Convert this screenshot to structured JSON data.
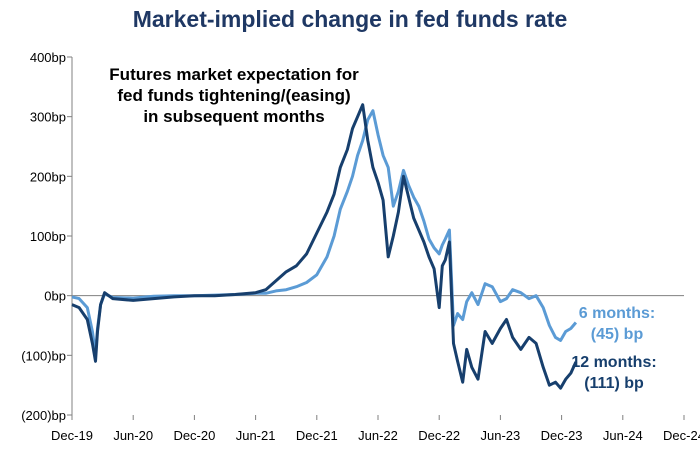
{
  "chart_data": {
    "type": "line",
    "title": "Market-implied change in fed funds rate",
    "xlabel": "",
    "ylabel": "",
    "ylim": [
      -200,
      400
    ],
    "y_ticks": [
      {
        "value": 400,
        "label": "400bp"
      },
      {
        "value": 300,
        "label": "300bp"
      },
      {
        "value": 200,
        "label": "200bp"
      },
      {
        "value": 100,
        "label": "100bp"
      },
      {
        "value": 0,
        "label": "0bp"
      },
      {
        "value": -100,
        "label": "(100)bp"
      },
      {
        "value": -200,
        "label": "(200)bp"
      }
    ],
    "x_range_months": [
      0,
      60
    ],
    "x_ticks": [
      {
        "value": 0,
        "label": "Dec-19"
      },
      {
        "value": 6,
        "label": "Jun-20"
      },
      {
        "value": 12,
        "label": "Dec-20"
      },
      {
        "value": 18,
        "label": "Jun-21"
      },
      {
        "value": 24,
        "label": "Dec-21"
      },
      {
        "value": 30,
        "label": "Jun-22"
      },
      {
        "value": 36,
        "label": "Dec-22"
      },
      {
        "value": 42,
        "label": "Jun-23"
      },
      {
        "value": 48,
        "label": "Dec-23"
      },
      {
        "value": 54,
        "label": "Jun-24"
      },
      {
        "value": 60,
        "label": "Dec-24"
      }
    ],
    "annotation": [
      "Futures market expectation for",
      "fed funds tightening/(easing)",
      "in subsequent months"
    ],
    "series": [
      {
        "name": "6 months",
        "color": "#5b9bd5",
        "end_label": [
          "6 months:",
          "(45) bp"
        ],
        "x": [
          0,
          0.7,
          1.5,
          2.0,
          2.3,
          2.5,
          2.8,
          3.2,
          4,
          6,
          8,
          10,
          12,
          14,
          16,
          18,
          19,
          20,
          21,
          22,
          23,
          24,
          25,
          25.7,
          26.3,
          27,
          27.5,
          28,
          28.5,
          29,
          29.5,
          30,
          30.5,
          31,
          31.5,
          32,
          32.5,
          33,
          33.5,
          34,
          34.5,
          35,
          35.5,
          36,
          36.3,
          36.6,
          37,
          37.4,
          37.8,
          38.3,
          38.7,
          39.2,
          39.8,
          40.5,
          41.2,
          42,
          42.6,
          43.2,
          44,
          44.8,
          45.5,
          46.2,
          46.8,
          47.4,
          47.9,
          48.4,
          48.9,
          49.4
        ],
        "values": [
          -2,
          -5,
          -20,
          -60,
          -97,
          -55,
          -15,
          3,
          -3,
          -4,
          -1,
          0,
          0,
          1,
          2,
          4,
          4,
          8,
          10,
          15,
          22,
          35,
          65,
          100,
          145,
          175,
          200,
          235,
          260,
          295,
          310,
          270,
          235,
          215,
          150,
          175,
          210,
          185,
          165,
          150,
          125,
          95,
          80,
          70,
          85,
          95,
          110,
          -50,
          -30,
          -40,
          -10,
          5,
          -15,
          20,
          15,
          -10,
          -5,
          10,
          5,
          -5,
          0,
          -20,
          -50,
          -70,
          -75,
          -60,
          -55,
          -45
        ]
      },
      {
        "name": "12 months",
        "color": "#173f6d",
        "end_label": [
          "12 months:",
          "(111) bp"
        ],
        "x": [
          0,
          0.7,
          1.5,
          2.0,
          2.3,
          2.5,
          2.8,
          3.2,
          4,
          6,
          8,
          10,
          12,
          14,
          16,
          18,
          19,
          20,
          21,
          22,
          23,
          24,
          25,
          25.7,
          26.3,
          27,
          27.5,
          28,
          28.5,
          29,
          29.5,
          30,
          30.5,
          31,
          31.5,
          32,
          32.5,
          33,
          33.5,
          34,
          34.5,
          35,
          35.5,
          36,
          36.3,
          36.6,
          37,
          37.4,
          37.8,
          38.3,
          38.7,
          39.2,
          39.8,
          40.5,
          41.2,
          42,
          42.6,
          43.2,
          44,
          44.8,
          45.5,
          46.2,
          46.8,
          47.4,
          47.9,
          48.4,
          48.9,
          49.4
        ],
        "values": [
          -15,
          -20,
          -40,
          -80,
          -110,
          -60,
          -15,
          5,
          -5,
          -8,
          -5,
          -2,
          0,
          0,
          2,
          5,
          10,
          25,
          40,
          50,
          70,
          105,
          140,
          170,
          215,
          245,
          280,
          300,
          320,
          260,
          215,
          190,
          160,
          65,
          100,
          140,
          200,
          165,
          130,
          110,
          90,
          65,
          45,
          -20,
          50,
          60,
          90,
          -80,
          -110,
          -145,
          -90,
          -120,
          -140,
          -60,
          -80,
          -55,
          -40,
          -70,
          -90,
          -70,
          -80,
          -120,
          -150,
          -145,
          -155,
          -140,
          -130,
          -111
        ]
      }
    ]
  }
}
